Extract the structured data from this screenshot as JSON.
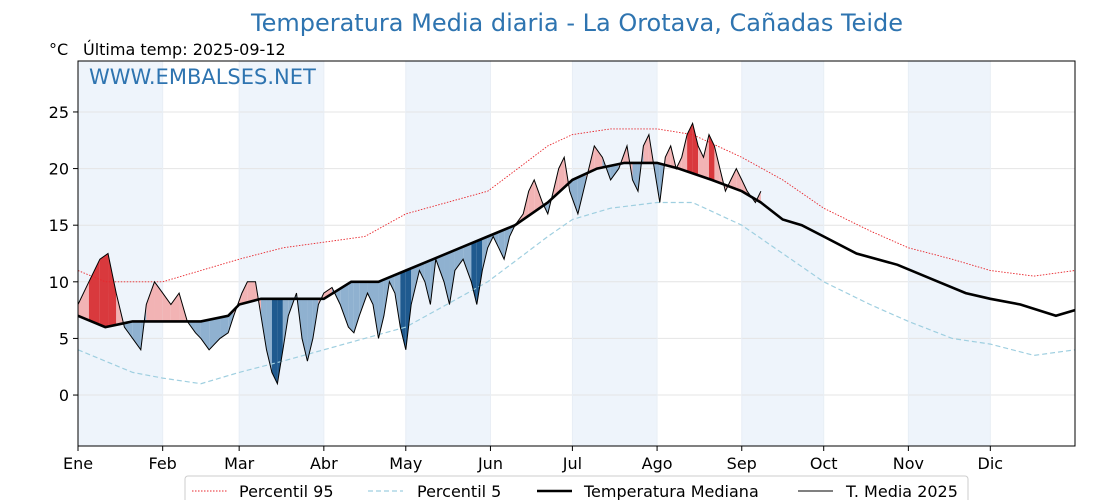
{
  "colors": {
    "title": "#2e74b0",
    "watermark": "#2e74b0",
    "p95": "#e8262c",
    "p5": "#9fcfe0",
    "median": "#000000",
    "current": "#000000",
    "above_fill": "#f2b3b4",
    "above_fill_dark": "#d9393d",
    "below_fill": "#8fb1d0",
    "below_fill_dark": "#1f5a8f",
    "month_band": "#eef4fb"
  },
  "chart_data": {
    "type": "line",
    "title": "Temperatura Media diaria - La Orotava, Cañadas Teide",
    "unit_label": "°C",
    "last_temp_label": "Última temp: 2025-09-12",
    "watermark": "WWW.EMBALSES.NET",
    "ylim": [
      -4.5,
      29.5
    ],
    "yticks": [
      "0",
      "5",
      "10",
      "15",
      "20",
      "25"
    ],
    "months": [
      "Ene",
      "Feb",
      "Mar",
      "Abr",
      "May",
      "Jun",
      "Jul",
      "Ago",
      "Sep",
      "Oct",
      "Nov",
      "Dic"
    ],
    "x_range_days": [
      0,
      365
    ],
    "grid": true,
    "legend_position": "bottom",
    "series": [
      {
        "name": "Percentil 95",
        "style": "dotted",
        "points": [
          [
            0,
            11
          ],
          [
            10,
            10
          ],
          [
            20,
            10
          ],
          [
            31,
            10
          ],
          [
            45,
            11
          ],
          [
            59,
            12
          ],
          [
            75,
            13
          ],
          [
            90,
            13.5
          ],
          [
            105,
            14
          ],
          [
            120,
            16
          ],
          [
            135,
            17
          ],
          [
            150,
            18
          ],
          [
            161,
            20
          ],
          [
            172,
            22
          ],
          [
            181,
            23
          ],
          [
            195,
            23.5
          ],
          [
            212,
            23.5
          ],
          [
            225,
            23
          ],
          [
            243,
            21
          ],
          [
            258,
            19
          ],
          [
            273,
            16.5
          ],
          [
            290,
            14.5
          ],
          [
            304,
            13
          ],
          [
            320,
            12
          ],
          [
            334,
            11
          ],
          [
            350,
            10.5
          ],
          [
            365,
            11
          ]
        ]
      },
      {
        "name": "Percentil 5",
        "style": "dashed",
        "points": [
          [
            0,
            4
          ],
          [
            10,
            3
          ],
          [
            20,
            2
          ],
          [
            31,
            1.5
          ],
          [
            45,
            1
          ],
          [
            59,
            2
          ],
          [
            75,
            3
          ],
          [
            90,
            4
          ],
          [
            105,
            5
          ],
          [
            120,
            6
          ],
          [
            135,
            8
          ],
          [
            150,
            10
          ],
          [
            161,
            12
          ],
          [
            172,
            14
          ],
          [
            181,
            15.5
          ],
          [
            195,
            16.5
          ],
          [
            212,
            17
          ],
          [
            225,
            17
          ],
          [
            243,
            15
          ],
          [
            258,
            12.5
          ],
          [
            273,
            10
          ],
          [
            290,
            8
          ],
          [
            304,
            6.5
          ],
          [
            320,
            5
          ],
          [
            334,
            4.5
          ],
          [
            350,
            3.5
          ],
          [
            365,
            4
          ]
        ]
      },
      {
        "name": "Temperatura Mediana",
        "style": "solid-thick",
        "points": [
          [
            0,
            7
          ],
          [
            10,
            6
          ],
          [
            20,
            6.5
          ],
          [
            31,
            6.5
          ],
          [
            45,
            6.5
          ],
          [
            55,
            7
          ],
          [
            59,
            8
          ],
          [
            67,
            8.5
          ],
          [
            75,
            8.5
          ],
          [
            85,
            8.5
          ],
          [
            90,
            8.5
          ],
          [
            100,
            10
          ],
          [
            110,
            10
          ],
          [
            120,
            11
          ],
          [
            130,
            12
          ],
          [
            140,
            13
          ],
          [
            150,
            14
          ],
          [
            160,
            15
          ],
          [
            172,
            17
          ],
          [
            181,
            19
          ],
          [
            190,
            20
          ],
          [
            200,
            20.5
          ],
          [
            212,
            20.5
          ],
          [
            220,
            20
          ],
          [
            232,
            19
          ],
          [
            243,
            18
          ],
          [
            250,
            17
          ],
          [
            258,
            15.5
          ],
          [
            265,
            15
          ],
          [
            273,
            14
          ],
          [
            285,
            12.5
          ],
          [
            300,
            11.5
          ],
          [
            315,
            10
          ],
          [
            325,
            9
          ],
          [
            334,
            8.5
          ],
          [
            345,
            8
          ],
          [
            358,
            7
          ],
          [
            365,
            7.5
          ]
        ]
      },
      {
        "name": "T. Media 2025",
        "style": "solid-thin",
        "points": [
          [
            0,
            8
          ],
          [
            4,
            10
          ],
          [
            8,
            12
          ],
          [
            11,
            12.5
          ],
          [
            14,
            9
          ],
          [
            17,
            6
          ],
          [
            20,
            5
          ],
          [
            23,
            4
          ],
          [
            25,
            8
          ],
          [
            28,
            10
          ],
          [
            31,
            9
          ],
          [
            34,
            8
          ],
          [
            37,
            9
          ],
          [
            40,
            6.5
          ],
          [
            43,
            5.5
          ],
          [
            45,
            5
          ],
          [
            48,
            4
          ],
          [
            52,
            5
          ],
          [
            55,
            5.5
          ],
          [
            57,
            7
          ],
          [
            60,
            9
          ],
          [
            62,
            10
          ],
          [
            65,
            10
          ],
          [
            67,
            7
          ],
          [
            69,
            4
          ],
          [
            71,
            2
          ],
          [
            73,
            1
          ],
          [
            75,
            4
          ],
          [
            77,
            7
          ],
          [
            80,
            9
          ],
          [
            82,
            5
          ],
          [
            84,
            3
          ],
          [
            86,
            5
          ],
          [
            88,
            8
          ],
          [
            90,
            9
          ],
          [
            93,
            9.5
          ],
          [
            96,
            8
          ],
          [
            99,
            6
          ],
          [
            101,
            5.5
          ],
          [
            103,
            7
          ],
          [
            106,
            9
          ],
          [
            108,
            8
          ],
          [
            110,
            5
          ],
          [
            112,
            7
          ],
          [
            114,
            10
          ],
          [
            116,
            9
          ],
          [
            118,
            6
          ],
          [
            120,
            4
          ],
          [
            122,
            8
          ],
          [
            125,
            11
          ],
          [
            127,
            10
          ],
          [
            129,
            8
          ],
          [
            131,
            12
          ],
          [
            134,
            10
          ],
          [
            136,
            8
          ],
          [
            138,
            11
          ],
          [
            141,
            12
          ],
          [
            144,
            10
          ],
          [
            146,
            8
          ],
          [
            148,
            11
          ],
          [
            150,
            13
          ],
          [
            152,
            14
          ],
          [
            154,
            13
          ],
          [
            156,
            12
          ],
          [
            158,
            14
          ],
          [
            160,
            15
          ],
          [
            163,
            16
          ],
          [
            165,
            18
          ],
          [
            167,
            19
          ],
          [
            170,
            17
          ],
          [
            172,
            16
          ],
          [
            174,
            18
          ],
          [
            176,
            20
          ],
          [
            178,
            21
          ],
          [
            180,
            18
          ],
          [
            183,
            16
          ],
          [
            186,
            19
          ],
          [
            189,
            22
          ],
          [
            192,
            21
          ],
          [
            195,
            19
          ],
          [
            198,
            20
          ],
          [
            201,
            22
          ],
          [
            203,
            19
          ],
          [
            205,
            18
          ],
          [
            207,
            22
          ],
          [
            209,
            23
          ],
          [
            211,
            20
          ],
          [
            213,
            17
          ],
          [
            215,
            21
          ],
          [
            217,
            22
          ],
          [
            219,
            20
          ],
          [
            221,
            21
          ],
          [
            223,
            23
          ],
          [
            225,
            24
          ],
          [
            227,
            22
          ],
          [
            229,
            21
          ],
          [
            231,
            23
          ],
          [
            233,
            22
          ],
          [
            235,
            20
          ],
          [
            237,
            18
          ],
          [
            239,
            19
          ],
          [
            241,
            20
          ],
          [
            243,
            19
          ],
          [
            245,
            18
          ],
          [
            248,
            17
          ],
          [
            250,
            18
          ]
        ]
      }
    ]
  },
  "legend": {
    "items": [
      {
        "label": "Percentil 95",
        "style": "dotted"
      },
      {
        "label": "Percentil 5",
        "style": "dashed"
      },
      {
        "label": "Temperatura Mediana",
        "style": "solid-thick"
      },
      {
        "label": "T. Media 2025",
        "style": "solid-thin"
      }
    ]
  }
}
